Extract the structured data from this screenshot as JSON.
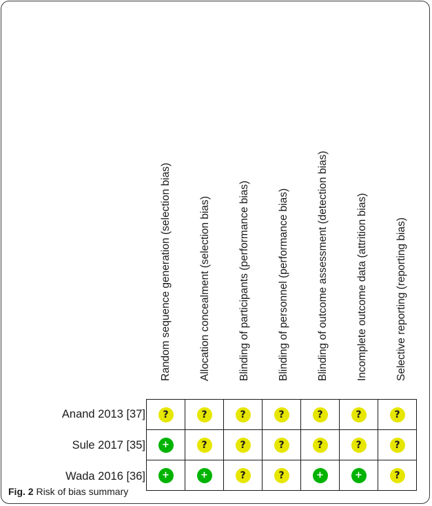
{
  "chart_data": {
    "type": "table",
    "columns": [
      "Random sequence generation (selection bias)",
      "Allocation concealment (selection bias)",
      "Blinding of participants (performance bias)",
      "Blinding of personnel (performance bias)",
      "Blinding of outcome assessment (detection bias)",
      "Incomplete outcome data (attrition bias)",
      "Selective reporting (reporting bias)"
    ],
    "rows": [
      {
        "study": "Anand 2013 [37]",
        "values": [
          "?",
          "?",
          "?",
          "?",
          "?",
          "?",
          "?"
        ]
      },
      {
        "study": "Sule 2017 [35]",
        "values": [
          "+",
          "?",
          "?",
          "?",
          "?",
          "?",
          "?"
        ]
      },
      {
        "study": "Wada 2016 [36]",
        "values": [
          "+",
          "+",
          "?",
          "?",
          "+",
          "+",
          "?"
        ]
      }
    ],
    "symbol_colors": {
      "?": "#e6e600",
      "+": "#00b300"
    }
  },
  "caption": {
    "label": "Fig. 2",
    "text": " Risk of bias summary"
  }
}
